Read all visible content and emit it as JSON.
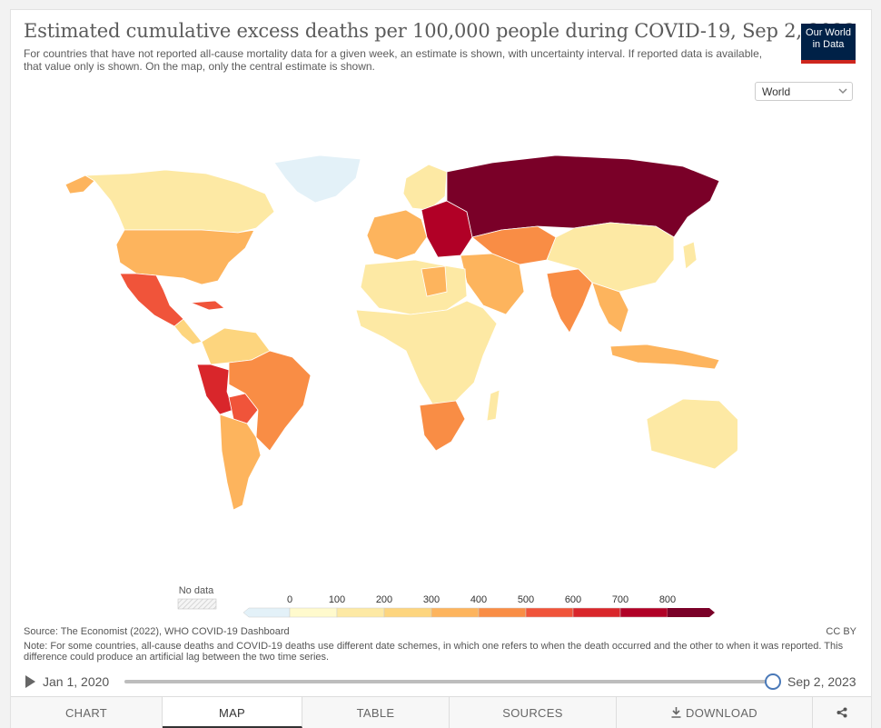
{
  "title": "Estimated cumulative excess deaths per 100,000 people during COVID-19, Sep 2, 2023",
  "subtitle": "For countries that have not reported all-cause mortality data for a given week, an estimate is shown, with uncertainty interval. If reported data is available, that value only is shown. On the map, only the central estimate is shown.",
  "logo": {
    "line1": "Our World",
    "line2": "in Data"
  },
  "region_selector": {
    "value": "World"
  },
  "legend": {
    "no_data_label": "No data",
    "ticks": [
      "0",
      "100",
      "200",
      "300",
      "400",
      "500",
      "600",
      "700",
      "800"
    ],
    "colors": [
      "#e3f1f8",
      "#fffacd",
      "#fde9a4",
      "#fdd57e",
      "#fdb45d",
      "#f98d45",
      "#f0543a",
      "#d9262b",
      "#b10026",
      "#7a0028"
    ]
  },
  "source": "Source: The Economist (2022), WHO COVID-19 Dashboard",
  "license": "CC BY",
  "note": "Note: For some countries, all-cause deaths and COVID-19 deaths use different date schemes, in which one refers to when the death occurred and the other to when it was reported. This difference could produce an artificial lag between the two time series.",
  "timeline": {
    "start": "Jan 1, 2020",
    "end": "Sep 2, 2023"
  },
  "tabs": [
    "CHART",
    "MAP",
    "TABLE",
    "SOURCES",
    "DOWNLOAD"
  ],
  "active_tab": "MAP",
  "icons": {
    "play": "play-icon",
    "download": "download-icon",
    "share": "share-icon",
    "dropdown": "chevron-down-icon"
  },
  "map_regions": {
    "greenland": "#e3f1f8",
    "canada": "#fde9a4",
    "alaska": "#fdb45d",
    "usa": "#fdb45d",
    "mexico": "#f0543a",
    "central_america": "#fdd57e",
    "caribbean": "#f0543a",
    "colombia_venezuela": "#fdd57e",
    "peru": "#d9262b",
    "bolivia": "#f0543a",
    "brazil": "#f98d45",
    "south_cone": "#fdb45d",
    "western_europe": "#fdb45d",
    "scandinavia": "#fde9a4",
    "eastern_europe": "#b10026",
    "russia": "#7a0028",
    "middle_east": "#fdb45d",
    "central_asia": "#f98d45",
    "india": "#f98d45",
    "china_mongolia": "#fde9a4",
    "southeast_asia": "#fdb45d",
    "north_africa": "#fde9a4",
    "libya": "#fdb45d",
    "sub_saharan_africa": "#fde9a4",
    "southern_africa": "#f98d45",
    "australia": "#fde9a4",
    "japan": "#fde9a4",
    "indonesia": "#fdb45d"
  }
}
